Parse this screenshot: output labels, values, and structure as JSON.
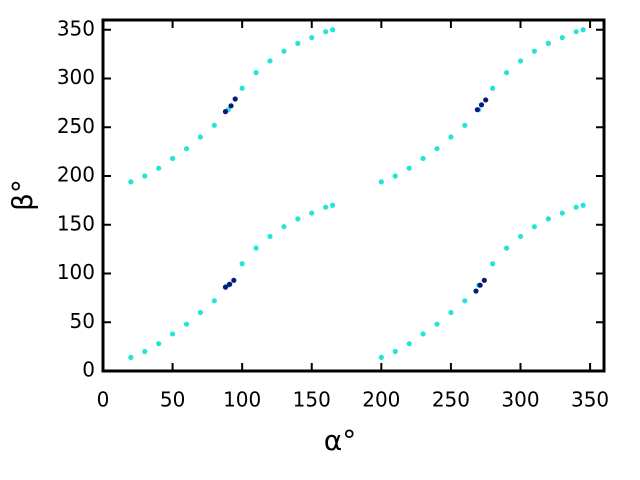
{
  "chart_data": {
    "type": "scatter",
    "xlabel": "α°",
    "ylabel": "β°",
    "xlim": [
      0,
      360
    ],
    "ylim": [
      0,
      360
    ],
    "xticks": [
      0,
      50,
      100,
      150,
      200,
      250,
      300,
      350
    ],
    "yticks": [
      0,
      50,
      100,
      150,
      200,
      250,
      300,
      350
    ],
    "series": [
      {
        "color": "#22e5d6",
        "x": [
          20,
          30,
          40,
          50,
          60,
          70,
          80,
          90,
          100,
          110,
          120,
          130,
          140,
          150,
          160,
          165,
          20,
          30,
          40,
          50,
          60,
          70,
          80,
          90,
          100,
          110,
          120,
          130,
          140,
          150,
          160,
          165,
          200,
          210,
          220,
          230,
          240,
          250,
          260,
          270,
          280,
          290,
          300,
          310,
          320,
          330,
          340,
          345,
          200,
          210,
          220,
          230,
          240,
          250,
          260,
          270,
          280,
          290,
          300,
          310,
          320,
          330,
          340,
          345
        ],
        "values": [
          14,
          20,
          28,
          38,
          48,
          60,
          72,
          88,
          110,
          126,
          138,
          148,
          156,
          162,
          168,
          170,
          194,
          200,
          208,
          218,
          228,
          240,
          252,
          268,
          290,
          306,
          318,
          328,
          336,
          342,
          348,
          350,
          14,
          20,
          28,
          38,
          48,
          60,
          72,
          88,
          110,
          126,
          138,
          148,
          156,
          162,
          168,
          170,
          194,
          200,
          208,
          218,
          228,
          240,
          252,
          268,
          290,
          306,
          318,
          328,
          336,
          342,
          348,
          350
        ]
      },
      {
        "color": "#0a1a7a",
        "x": [
          88,
          91,
          94,
          88,
          92,
          95,
          268,
          271,
          274,
          269,
          272,
          275
        ],
        "values": [
          86,
          89,
          93,
          266,
          272,
          279,
          82,
          88,
          93,
          268,
          273,
          278
        ]
      }
    ]
  }
}
